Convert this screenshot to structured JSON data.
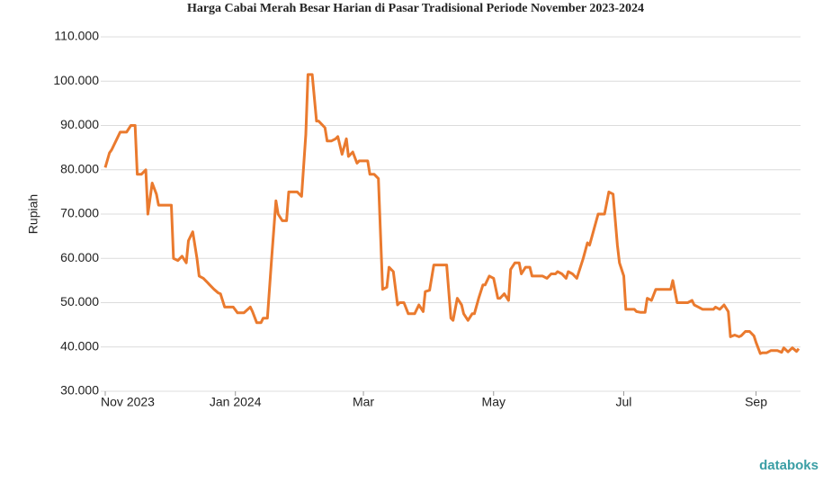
{
  "chart_data": {
    "type": "line",
    "title": "Harga Cabai Merah Besar Harian di Pasar Tradisional Periode November 2023-2024",
    "y_label": "Rupiah",
    "watermark": "databoks",
    "xlim": [
      0,
      325
    ],
    "xticks": [
      {
        "value": 0,
        "label": "Nov 2023"
      },
      {
        "value": 61,
        "label": "Jan 2024"
      },
      {
        "value": 121,
        "label": "Mar"
      },
      {
        "value": 182,
        "label": "May"
      },
      {
        "value": 243,
        "label": "Jul"
      },
      {
        "value": 305,
        "label": "Sep"
      }
    ],
    "ylim": [
      30000,
      110000
    ],
    "yticks": [
      {
        "value": 30000,
        "label": "30.000"
      },
      {
        "value": 40000,
        "label": "40.000"
      },
      {
        "value": 50000,
        "label": "50.000"
      },
      {
        "value": 60000,
        "label": "60.000"
      },
      {
        "value": 70000,
        "label": "70.000"
      },
      {
        "value": 80000,
        "label": "80.000"
      },
      {
        "value": 90000,
        "label": "90.000"
      },
      {
        "value": 100000,
        "label": "100.000"
      },
      {
        "value": 110000,
        "label": "110.000"
      }
    ],
    "grid": true,
    "x": [
      0,
      2,
      3,
      5,
      7,
      10,
      12,
      14,
      15,
      17,
      19,
      20,
      22,
      24,
      25,
      31,
      32,
      34,
      36,
      38,
      39,
      41,
      43,
      44,
      46,
      48,
      49,
      51,
      53,
      54,
      56,
      60,
      62,
      65,
      68,
      69,
      71,
      73,
      74,
      76,
      78,
      80,
      81,
      83,
      85,
      86,
      90,
      92,
      94,
      95,
      97,
      99,
      100,
      103,
      104,
      106,
      108,
      109,
      111,
      113,
      114,
      116,
      118,
      119,
      123,
      124,
      126,
      128,
      130,
      132,
      133,
      135,
      137,
      138,
      140,
      142,
      145,
      147,
      149,
      150,
      152,
      154,
      160,
      162,
      163,
      165,
      167,
      168,
      170,
      172,
      173,
      175,
      177,
      178,
      180,
      182,
      184,
      185,
      187,
      189,
      190,
      192,
      194,
      195,
      197,
      199,
      200,
      205,
      207,
      209,
      211,
      212,
      214,
      216,
      217,
      219,
      221,
      224,
      226,
      227,
      231,
      234,
      236,
      238,
      240,
      241,
      243,
      244,
      248,
      249,
      251,
      253,
      254,
      256,
      258,
      265,
      266,
      268,
      273,
      275,
      276,
      278,
      280,
      283,
      285,
      286,
      288,
      290,
      292,
      293,
      295,
      297,
      298,
      300,
      302,
      304,
      305,
      307,
      308,
      310,
      312,
      315,
      317,
      318,
      320,
      322,
      324,
      325
    ],
    "series": [
      {
        "name": "Harga",
        "color": "#ea7a2e",
        "values": [
          80500,
          83800,
          84500,
          86500,
          88500,
          88500,
          90000,
          90000,
          79000,
          79000,
          80000,
          70000,
          77000,
          74500,
          72000,
          72000,
          60000,
          59500,
          60500,
          59000,
          64000,
          66000,
          60000,
          56000,
          55500,
          54500,
          54000,
          53000,
          52200,
          52000,
          49000,
          49000,
          47700,
          47700,
          49000,
          48000,
          45500,
          45500,
          46500,
          46500,
          60000,
          73000,
          70000,
          68500,
          68500,
          75000,
          75000,
          74000,
          88000,
          101500,
          101500,
          91000,
          91000,
          89500,
          86500,
          86500,
          87000,
          87500,
          83500,
          87000,
          83000,
          84000,
          81500,
          82000,
          82000,
          79000,
          79000,
          78000,
          53000,
          53500,
          58000,
          57000,
          49500,
          50000,
          50000,
          47500,
          47500,
          49500,
          48000,
          52500,
          52800,
          58500,
          58500,
          46500,
          46000,
          51000,
          49500,
          47500,
          46000,
          47500,
          47500,
          51000,
          54000,
          54000,
          56000,
          55500,
          51000,
          51000,
          52000,
          50500,
          57500,
          59000,
          59000,
          56500,
          58000,
          58000,
          56000,
          56000,
          55500,
          56500,
          56500,
          57000,
          56500,
          55500,
          57000,
          56500,
          55500,
          60000,
          63500,
          63000,
          70000,
          70000,
          75000,
          74500,
          63000,
          59000,
          56000,
          48500,
          48500,
          48000,
          47800,
          47800,
          51000,
          50500,
          53000,
          53000,
          55000,
          50000,
          50000,
          50500,
          49500,
          49000,
          48500,
          48500,
          48500,
          49000,
          48500,
          49500,
          48000,
          42300,
          42700,
          42300,
          42500,
          43500,
          43500,
          42500,
          41000,
          38500,
          38700,
          38700,
          39200,
          39200,
          38800,
          39800,
          38900,
          39800,
          39000,
          39600
        ]
      }
    ]
  }
}
